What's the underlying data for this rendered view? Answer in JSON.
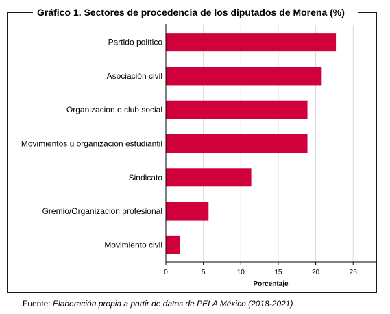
{
  "chart_data": {
    "type": "bar",
    "orientation": "horizontal",
    "title": "Gráfico 1. Sectores de procedencia de los diputados de Morena (%)",
    "categories": [
      "Partido político",
      "Asociación civil",
      "Organizacion o club social",
      "Movimientos u organizacion estudiantil",
      "Sindicato",
      "Gremio/Organizacion profesional",
      "Movimiento civil"
    ],
    "values": [
      22.7,
      20.8,
      18.9,
      18.9,
      11.4,
      5.7,
      1.9
    ],
    "xlabel": "Porcentaje",
    "ylabel": "",
    "xlim": [
      0,
      28
    ],
    "xticks": [
      0,
      5,
      10,
      15,
      20,
      25
    ],
    "grid": "vertical",
    "bar_color": "#d0003a",
    "grid_color": "#d9d9d9"
  },
  "source": {
    "prefix": "Fuente: ",
    "text": "Elaboración propia a partir de datos de PELA México (2018-2021)"
  }
}
